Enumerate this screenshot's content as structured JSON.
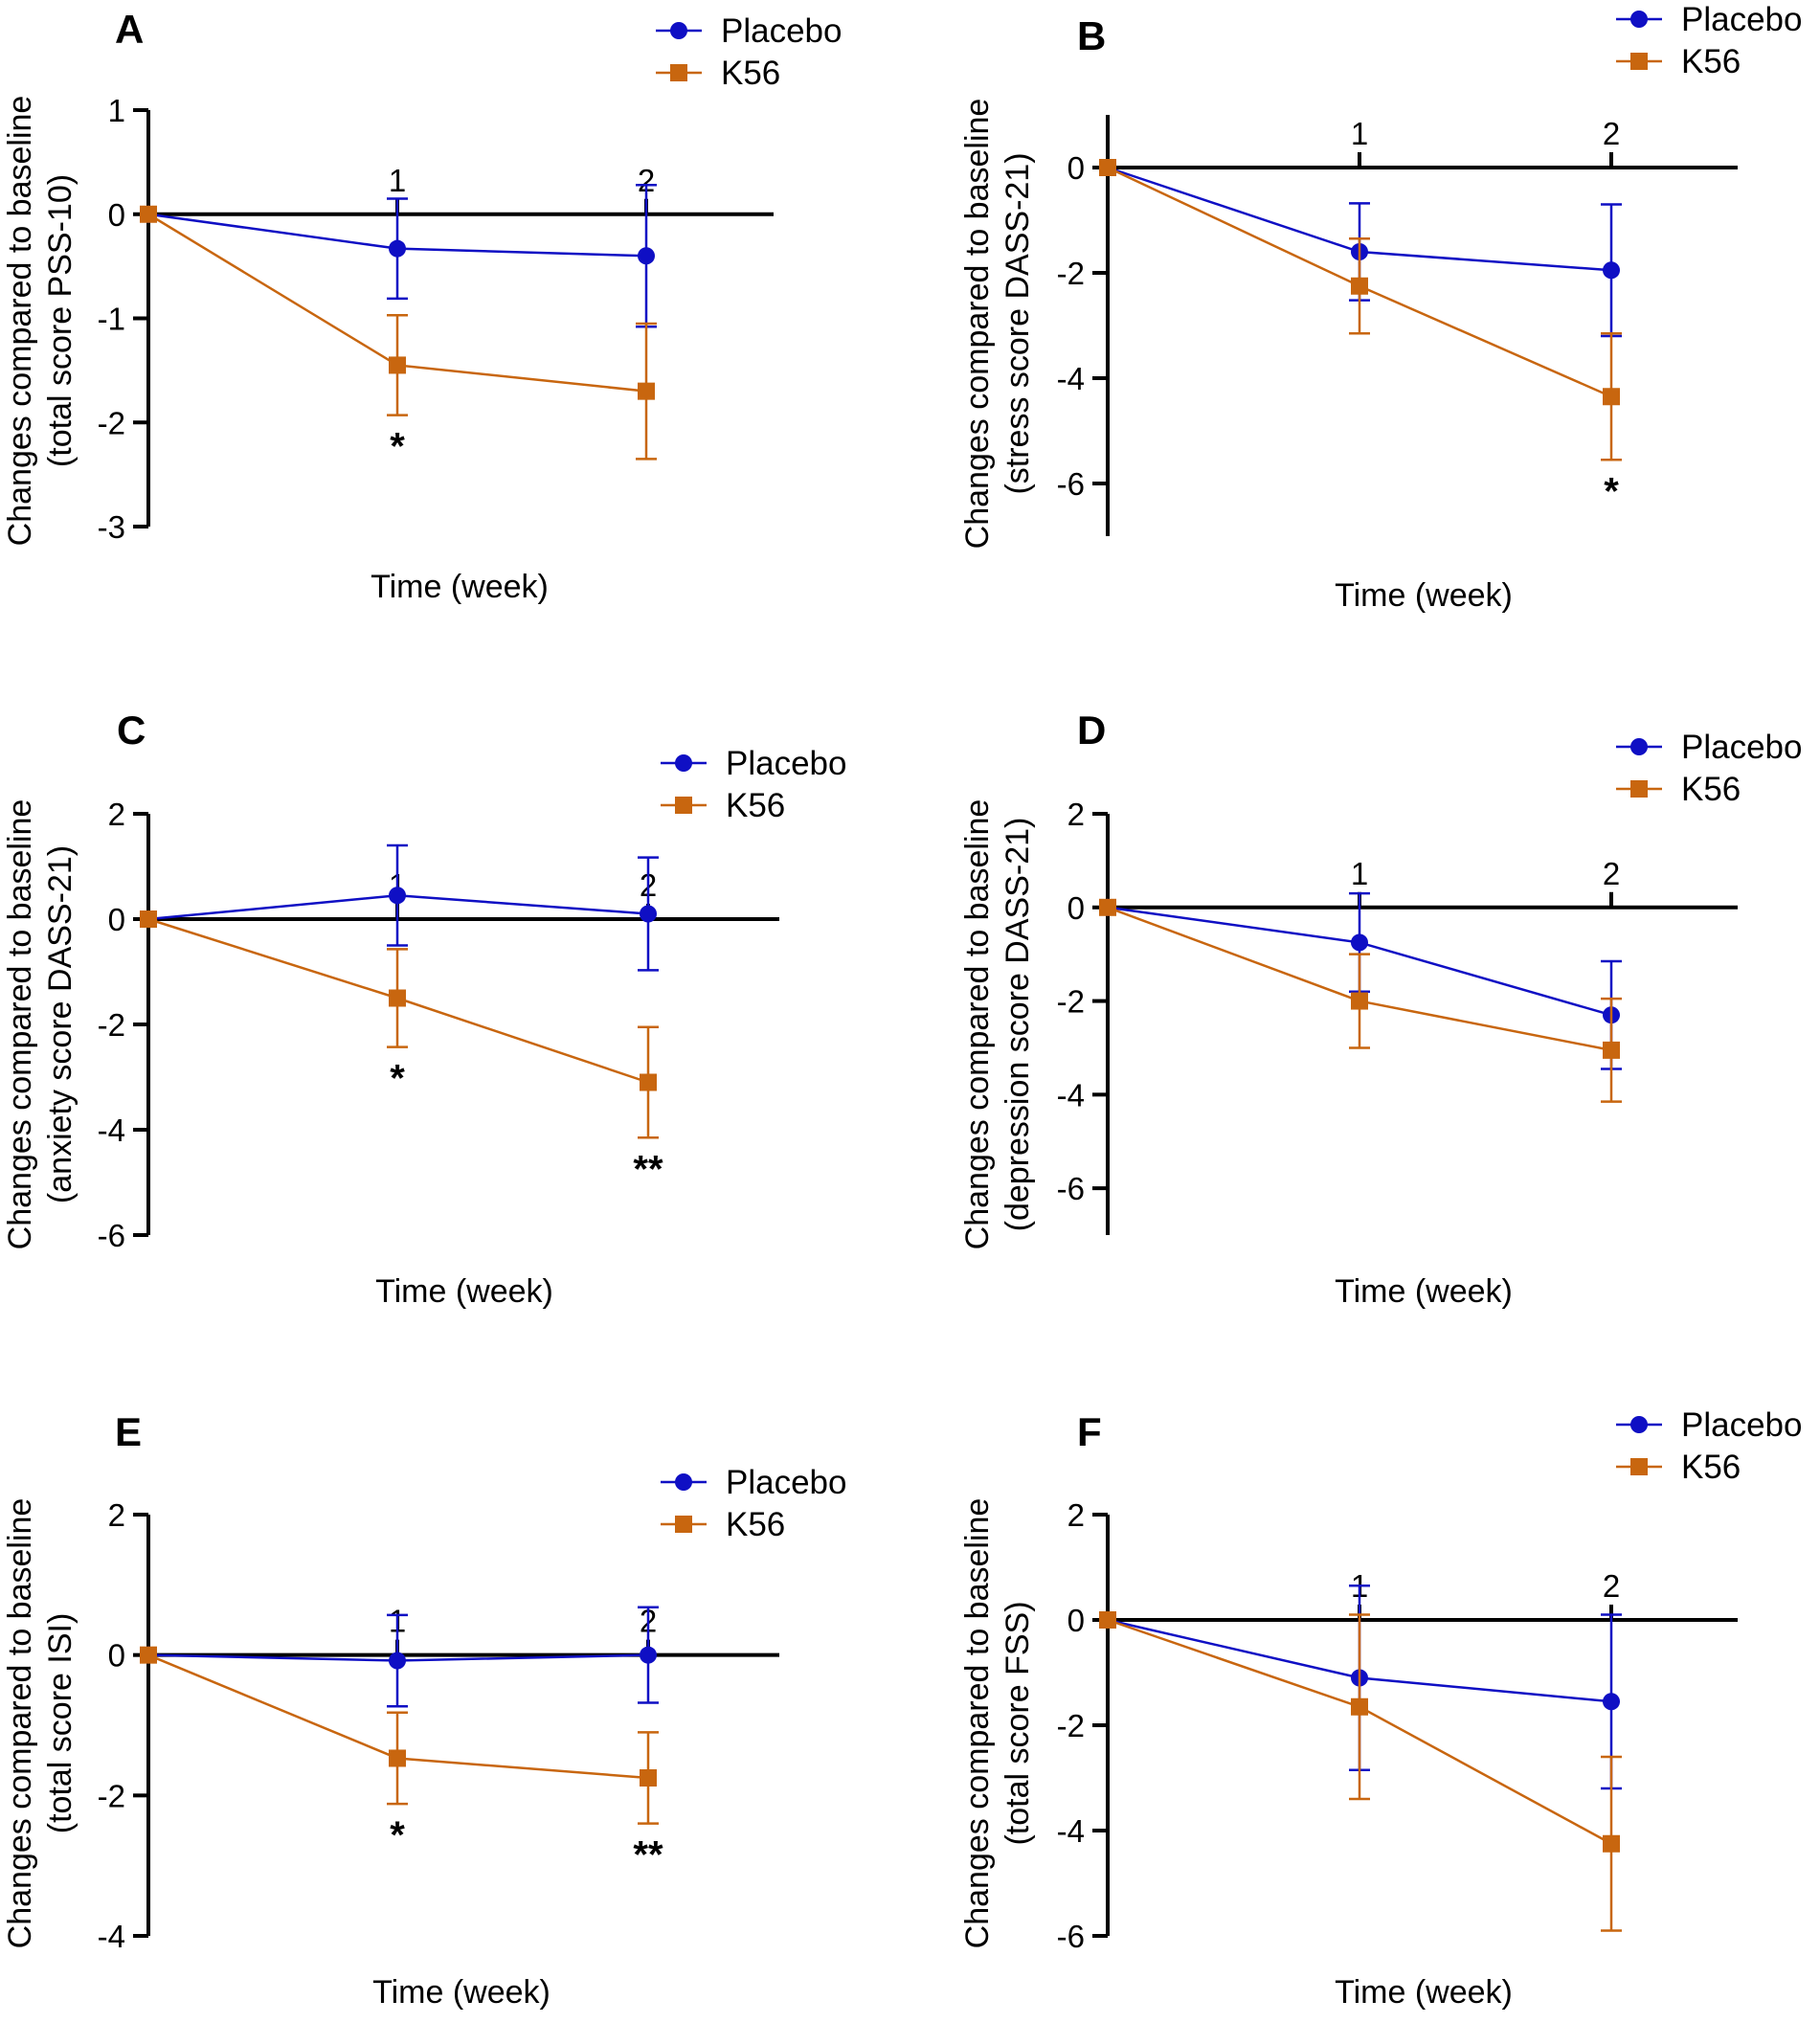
{
  "colors": {
    "placebo": "#0f0fc4",
    "k56": "#c8660f",
    "axis": "#000000"
  },
  "series_names": [
    "Placebo",
    "K56"
  ],
  "chart_data": [
    {
      "panel": "A",
      "type": "line",
      "ylabel_lines": [
        "Changes compared to baseline",
        "(total score PSS-10)"
      ],
      "xlabel": "Time (week)",
      "x": [
        0,
        1,
        2
      ],
      "x_labels": [
        "1",
        "2"
      ],
      "ylim": [
        -3,
        1
      ],
      "yticks": [
        1,
        0,
        -1,
        -2,
        -3
      ],
      "series": [
        {
          "name": "Placebo",
          "values": [
            0,
            -0.33,
            -0.4
          ],
          "err": [
            0,
            0.48,
            0.68
          ]
        },
        {
          "name": "K56",
          "values": [
            0,
            -1.45,
            -1.7
          ],
          "err": [
            0,
            0.48,
            0.65
          ]
        }
      ],
      "annotations": [
        {
          "x": 1,
          "text": "*"
        }
      ]
    },
    {
      "panel": "B",
      "type": "line",
      "ylabel_lines": [
        "Changes compared to baseline",
        "(stress score DASS-21)"
      ],
      "xlabel": "Time (week)",
      "x": [
        0,
        1,
        2
      ],
      "x_labels": [
        "1",
        "2"
      ],
      "ylim": [
        -7,
        1
      ],
      "yticks": [
        0,
        -2,
        -4,
        -6
      ],
      "series": [
        {
          "name": "Placebo",
          "values": [
            0,
            -1.6,
            -1.95
          ],
          "err": [
            0,
            0.92,
            1.25
          ]
        },
        {
          "name": "K56",
          "values": [
            0,
            -2.25,
            -4.35
          ],
          "err": [
            0,
            0.9,
            1.2
          ]
        }
      ],
      "annotations": [
        {
          "x": 2,
          "text": "*"
        }
      ]
    },
    {
      "panel": "C",
      "type": "line",
      "ylabel_lines": [
        "Changes compared to baseline",
        "(anxiety score DASS-21)"
      ],
      "xlabel": "Time (week)",
      "x": [
        0,
        1,
        2
      ],
      "x_labels": [
        "1",
        "2"
      ],
      "ylim": [
        -6,
        2
      ],
      "yticks": [
        2,
        0,
        -2,
        -4,
        -6
      ],
      "series": [
        {
          "name": "Placebo",
          "values": [
            0,
            0.45,
            0.1
          ],
          "err": [
            0,
            0.95,
            1.07
          ]
        },
        {
          "name": "K56",
          "values": [
            0,
            -1.5,
            -3.1
          ],
          "err": [
            0,
            0.93,
            1.05
          ]
        }
      ],
      "annotations": [
        {
          "x": 1,
          "text": "*"
        },
        {
          "x": 2,
          "text": "**"
        }
      ]
    },
    {
      "panel": "D",
      "type": "line",
      "ylabel_lines": [
        "Changes compared to baseline",
        "(depression score DASS-21)"
      ],
      "xlabel": "Time (week)",
      "x": [
        0,
        1,
        2
      ],
      "x_labels": [
        "1",
        "2"
      ],
      "ylim": [
        -7,
        2
      ],
      "yticks": [
        2,
        0,
        -2,
        -4,
        -6
      ],
      "series": [
        {
          "name": "Placebo",
          "values": [
            0,
            -0.75,
            -2.3
          ],
          "err": [
            0,
            1.05,
            1.15
          ]
        },
        {
          "name": "K56",
          "values": [
            0,
            -2.0,
            -3.05
          ],
          "err": [
            0,
            1.0,
            1.1
          ]
        }
      ],
      "annotations": []
    },
    {
      "panel": "E",
      "type": "line",
      "ylabel_lines": [
        "Changes compared to baseline",
        "(total score ISI)"
      ],
      "xlabel": "Time (week)",
      "x": [
        0,
        1,
        2
      ],
      "x_labels": [
        "1",
        "2"
      ],
      "ylim": [
        -4,
        2
      ],
      "yticks": [
        2,
        0,
        -2,
        -4
      ],
      "series": [
        {
          "name": "Placebo",
          "values": [
            0,
            -0.08,
            0.0
          ],
          "err": [
            0,
            0.65,
            0.68
          ]
        },
        {
          "name": "K56",
          "values": [
            0,
            -1.47,
            -1.75
          ],
          "err": [
            0,
            0.65,
            0.65
          ]
        }
      ],
      "annotations": [
        {
          "x": 1,
          "text": "*"
        },
        {
          "x": 2,
          "text": "**"
        }
      ]
    },
    {
      "panel": "F",
      "type": "line",
      "ylabel_lines": [
        "Changes compared to baseline",
        "(total score FSS)"
      ],
      "xlabel": "Time (week)",
      "x": [
        0,
        1,
        2
      ],
      "x_labels": [
        "1",
        "2"
      ],
      "ylim": [
        -6,
        2
      ],
      "yticks": [
        2,
        0,
        -2,
        -4,
        -6
      ],
      "series": [
        {
          "name": "Placebo",
          "values": [
            0,
            -1.1,
            -1.55
          ],
          "err": [
            0,
            1.75,
            1.65
          ]
        },
        {
          "name": "K56",
          "values": [
            0,
            -1.65,
            -4.25
          ],
          "err": [
            0,
            1.75,
            1.65
          ]
        }
      ],
      "annotations": []
    }
  ]
}
